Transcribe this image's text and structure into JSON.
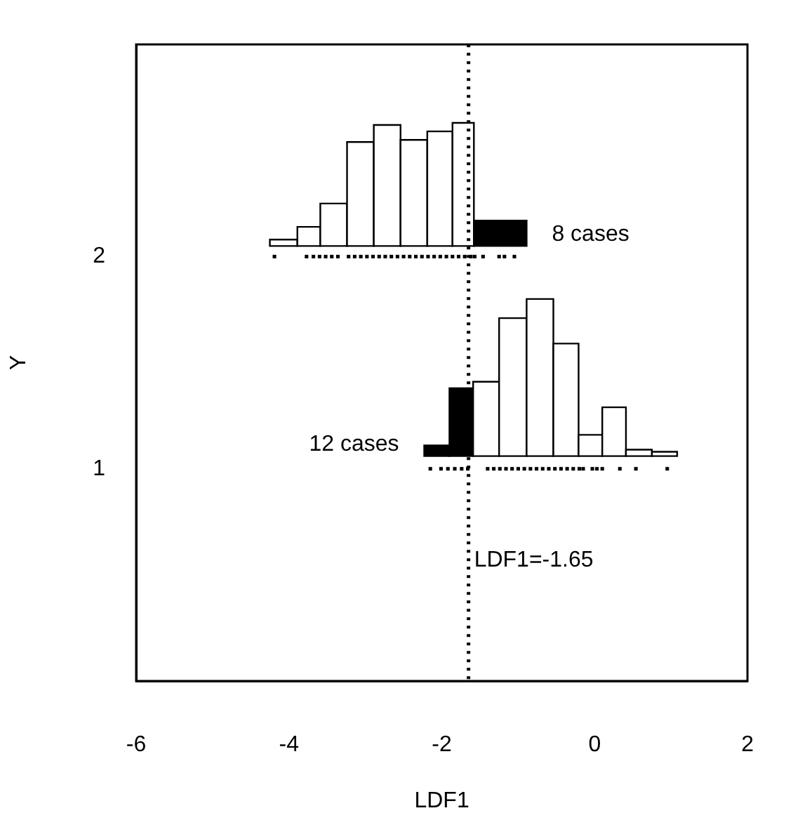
{
  "chart_data": {
    "type": "histogram",
    "xlabel": "LDF1",
    "ylabel": "Y",
    "xlim": [
      -6,
      2
    ],
    "xticks": [
      -6,
      -4,
      -2,
      0,
      2
    ],
    "ylim": [
      0,
      3
    ],
    "yticks": [
      1,
      2
    ],
    "legend": false,
    "grid": false,
    "marker": "square",
    "series": [
      {
        "bins": [
          -4.25,
          -3.89,
          -3.59,
          -3.24,
          -2.89,
          -2.54,
          -2.19,
          -1.86,
          -1.58,
          -0.89
        ],
        "values": [
          0.03,
          0.09,
          0.2,
          0.49,
          0.57,
          0.5,
          0.54,
          0.58,
          0.12
        ],
        "base": [
          2.05,
          2.05,
          2.05,
          2.05,
          2.05,
          2.05,
          2.05,
          2.05,
          2.05
        ],
        "colors": [
          "#ffffff",
          "#ffffff",
          "#ffffff",
          "#ffffff",
          "#ffffff",
          "#ffffff",
          "#ffffff",
          "#ffffff",
          "#000000"
        ]
      },
      {
        "bins": [
          -2.23,
          -1.9,
          -1.59,
          -1.25,
          -0.89,
          -0.54,
          -0.21,
          0.1,
          0.41,
          0.75,
          1.08
        ],
        "values": [
          0.05,
          0.32,
          0.35,
          0.65,
          0.74,
          0.53,
          0.1,
          0.23,
          0.03,
          0.02
        ],
        "base": [
          1.06,
          1.06,
          1.06,
          1.06,
          1.06,
          1.06,
          1.06,
          1.06,
          1.06,
          1.06
        ],
        "colors": [
          "#000000",
          "#000000",
          "#ffffff",
          "#ffffff",
          "#ffffff",
          "#ffffff",
          "#ffffff",
          "#ffffff",
          "#ffffff",
          "#ffffff"
        ]
      },
      {
        "type": "scatter",
        "color": "#000000",
        "x": [
          -4.19,
          -3.77,
          -3.68,
          -3.6,
          -3.52,
          -3.44,
          -3.36,
          -3.22,
          -3.14,
          -3.06,
          -2.98,
          -2.9,
          -2.82,
          -2.74,
          -2.66,
          -2.58,
          -2.5,
          -2.42,
          -2.34,
          -2.26,
          -2.18,
          -2.1,
          -2.02,
          -1.94,
          -1.86,
          -1.78,
          -1.7,
          -1.62,
          -1.57,
          -1.46,
          -1.25,
          -1.18,
          -1.05
        ],
        "values": [
          2,
          2,
          2,
          2,
          2,
          2,
          2,
          2,
          2,
          2,
          2,
          2,
          2,
          2,
          2,
          2,
          2,
          2,
          2,
          2,
          2,
          2,
          2,
          2,
          2,
          2,
          2,
          2,
          2,
          2,
          2,
          2,
          2
        ]
      },
      {
        "type": "scatter",
        "color": "#000000",
        "x": [
          -2.15,
          -2.01,
          -1.92,
          -1.83,
          -1.74,
          -1.66,
          -1.4,
          -1.32,
          -1.24,
          -1.16,
          -1.08,
          -1,
          -0.92,
          -0.84,
          -0.76,
          -0.68,
          -0.6,
          -0.52,
          -0.44,
          -0.36,
          -0.28,
          -0.2,
          -0.15,
          -0.03,
          0.03,
          0.1,
          0.33,
          0.54,
          0.95
        ],
        "values": [
          1,
          1,
          1,
          1,
          1,
          1,
          1,
          1,
          1,
          1,
          1,
          1,
          1,
          1,
          1,
          1,
          1,
          1,
          1,
          1,
          1,
          1,
          1,
          1,
          1,
          1,
          1,
          1,
          1
        ]
      }
    ],
    "ref_lines": [
      {
        "axis": "x",
        "value": -1.65,
        "label": "LDF1=-1.65",
        "line_style": "dotted"
      }
    ],
    "annotations": [
      "8 cases",
      "12 cases"
    ]
  }
}
